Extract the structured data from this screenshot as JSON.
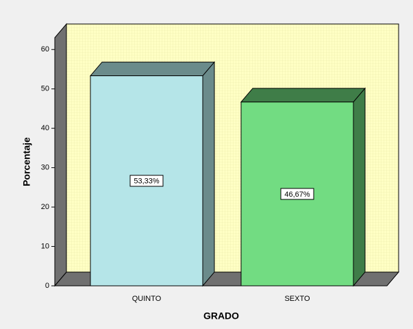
{
  "chart_data": {
    "type": "bar3d",
    "categories": [
      "QUINTO",
      "SEXTO"
    ],
    "values": [
      53.33,
      46.67
    ],
    "value_labels": [
      "53,33%",
      "46,67%"
    ],
    "colors": [
      "#b5e5e8",
      "#72dc82"
    ],
    "side_colors": [
      "#6b8b8b",
      "#3f7d48"
    ],
    "x_label": "GRADO",
    "y_label": "Porcentaje",
    "ylim": [
      0,
      63
    ],
    "yticks": [
      0,
      10,
      20,
      30,
      40,
      50,
      60
    ]
  }
}
